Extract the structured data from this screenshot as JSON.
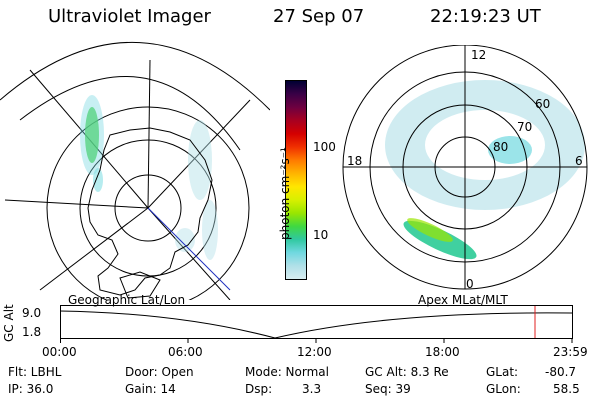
{
  "header": {
    "instrument": "Ultraviolet Imager",
    "date": "27 Sep 07",
    "time": "22:19:23 UT"
  },
  "colorbar": {
    "unit_label": "photon cm⁻²s⁻¹",
    "ticks": [
      "100",
      "10"
    ],
    "scale": "log",
    "colors": [
      "#000033",
      "#3a0046",
      "#6e0040",
      "#a80020",
      "#d40000",
      "#f03000",
      "#ff7a00",
      "#ffb400",
      "#ffe600",
      "#d8f000",
      "#9ae600",
      "#40d840",
      "#30c8a0",
      "#70d8e0",
      "#b0e0e8",
      "#d8ecf0"
    ]
  },
  "left_map": {
    "caption": "Geographic Lat/Lon"
  },
  "right_map": {
    "caption": "Apex MLat/MLT",
    "mlt_labels": {
      "top": "12",
      "bottom": "0",
      "left": "18",
      "right": "6"
    },
    "lat_labels": [
      "60",
      "70",
      "80"
    ]
  },
  "altitude_plot": {
    "axis_label": "GC Alt",
    "y_ticks": [
      "9.0",
      "1.8"
    ],
    "x_ticks": [
      "00:00",
      "06:00",
      "12:00",
      "18:00",
      "23:59"
    ],
    "marker_color": "#e02020"
  },
  "footer": {
    "filter": "Flt: LBHL",
    "ip": "IP: 36.0",
    "door": "Door: Open",
    "gain": "Gain: 14",
    "mode": "Mode: Normal",
    "dsp_label": "Dsp:",
    "dsp_value": "3.3",
    "gc_alt": "GC Alt: 8.3 Re",
    "seq": "Seq: 39",
    "glat_label": "GLat:",
    "glat_value": "-80.7",
    "glon_label": "GLon:",
    "glon_value": "58.5"
  }
}
